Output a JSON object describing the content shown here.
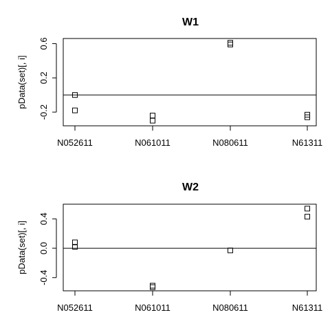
{
  "chart_data": [
    {
      "type": "scatter",
      "title": "W1",
      "xlabel": "",
      "ylabel": "pData(set)[, i]",
      "categories": [
        "N052611",
        "N061011",
        "N080611",
        "N61311"
      ],
      "yticks": [
        "-0.2",
        "0.2",
        "0.6"
      ],
      "ylim": [
        -0.36,
        0.66
      ],
      "reference_line_y": 0,
      "marker": "open-square",
      "grid": false,
      "points": [
        {
          "category": "N052611",
          "y": 0.0
        },
        {
          "category": "N052611",
          "y": -0.18
        },
        {
          "category": "N061011",
          "y": -0.24
        },
        {
          "category": "N061011",
          "y": -0.3
        },
        {
          "category": "N080611",
          "y": 0.61
        },
        {
          "category": "N080611",
          "y": 0.59
        },
        {
          "category": "N61311",
          "y": -0.23
        },
        {
          "category": "N61311",
          "y": -0.26
        }
      ]
    },
    {
      "type": "scatter",
      "title": "W2",
      "xlabel": "",
      "ylabel": "pData(set)[, i]",
      "categories": [
        "N052611",
        "N061011",
        "N080611",
        "N61311"
      ],
      "yticks": [
        "-0.4",
        "0.0",
        "0.4"
      ],
      "ylim": [
        -0.58,
        0.6
      ],
      "reference_line_y": 0,
      "marker": "open-square",
      "grid": false,
      "points": [
        {
          "category": "N052611",
          "y": 0.08
        },
        {
          "category": "N052611",
          "y": 0.02
        },
        {
          "category": "N061011",
          "y": -0.51
        },
        {
          "category": "N061011",
          "y": -0.53
        },
        {
          "category": "N080611",
          "y": -0.03
        },
        {
          "category": "N61311",
          "y": 0.54
        },
        {
          "category": "N61311",
          "y": 0.43
        }
      ]
    }
  ]
}
